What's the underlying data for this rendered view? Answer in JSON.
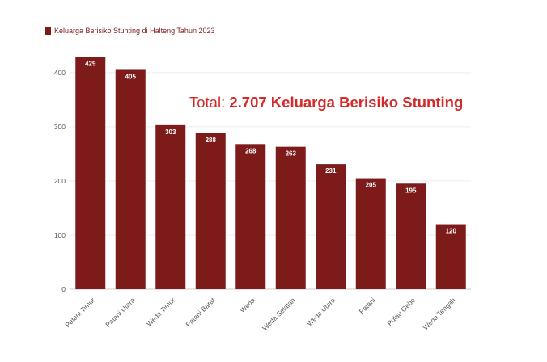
{
  "chart_data": {
    "type": "bar",
    "title": "",
    "legend": [
      {
        "name": "Keluarga Berisiko Stunting di Halteng Tahun 2023",
        "color": "#7d1a1a"
      }
    ],
    "annotation": {
      "prefix": "Total: ",
      "highlight": "2.707 Keluarga Berisiko Stunting",
      "color": "#d42a2a"
    },
    "categories": [
      "Patani Timur",
      "Patani Utara",
      "Weda Timur",
      "Patani Barat",
      "Weda",
      "Weda Selatan",
      "Weda Utara",
      "Patani",
      "Pulau Gebe",
      "Weda Tengah"
    ],
    "series": [
      {
        "name": "Keluarga Berisiko Stunting di Halteng Tahun 2023",
        "values": [
          429,
          405,
          303,
          288,
          268,
          263,
          231,
          205,
          195,
          120
        ],
        "color": "#7d1a1a"
      }
    ],
    "yticks": [
      0,
      100,
      200,
      300,
      400
    ],
    "ylim": [
      0,
      440
    ],
    "xlabel": "",
    "ylabel": "",
    "grid": true,
    "legend_position": "top-left"
  }
}
